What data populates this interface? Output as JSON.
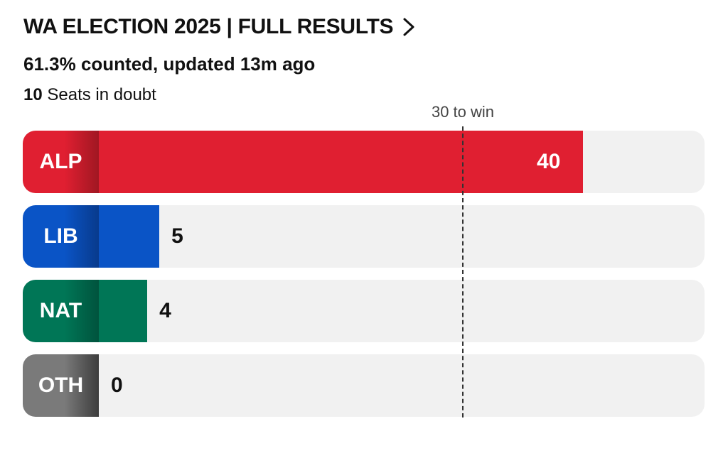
{
  "header": {
    "title": "WA ELECTION 2025 | FULL RESULTS",
    "chevron_icon": "chevron-right-icon",
    "status": "61.3% counted, updated 13m ago",
    "seats_in_doubt_count": "10",
    "seats_in_doubt_label": "Seats in doubt"
  },
  "majority": {
    "label": "30 to win",
    "value": 30
  },
  "chart_data": {
    "type": "bar",
    "orientation": "horizontal",
    "categories": [
      "ALP",
      "LIB",
      "NAT",
      "OTH"
    ],
    "values": [
      40,
      5,
      4,
      0
    ],
    "value_labels": [
      "40",
      "5",
      "4",
      "0"
    ],
    "reference_line": {
      "value": 30,
      "label": "30 to win"
    },
    "xlim": [
      0,
      59
    ],
    "colors": {
      "ALP": {
        "bar": "#e01f31",
        "tab_dark": "#a01722",
        "tab_light": "#e01f31"
      },
      "LIB": {
        "bar": "#0a54c6",
        "tab_dark": "#083a8c",
        "tab_light": "#0a54c6"
      },
      "NAT": {
        "bar": "#007656",
        "tab_dark": "#00533d",
        "tab_light": "#007656"
      },
      "OTH": {
        "bar": "#6b6b6b",
        "tab_dark": "#3d3d3d",
        "tab_light": "#7a7a7a"
      }
    },
    "value_label_colors": {
      "inside": "#ffffff",
      "outside": "#111111"
    },
    "track_color": "#f1f1f1"
  }
}
